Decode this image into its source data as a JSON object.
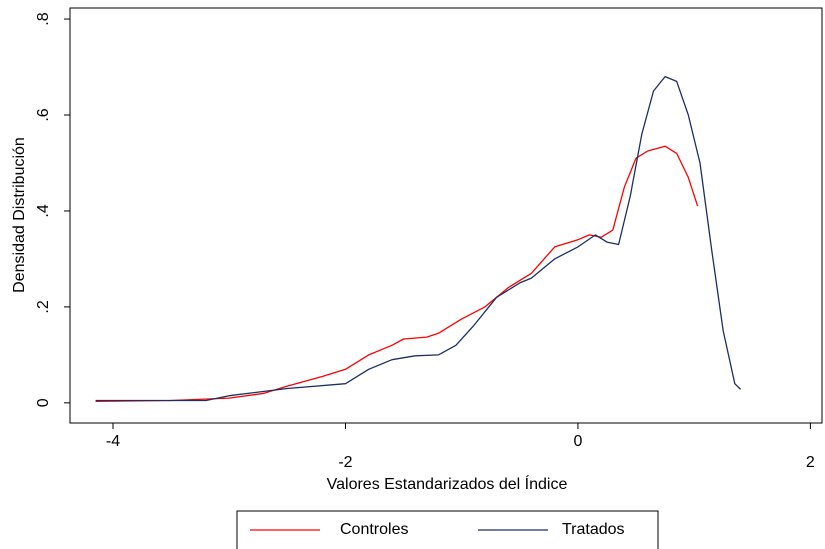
{
  "chart_data": {
    "type": "line",
    "x_label": "Valores Estandarizados del Índice",
    "y_label": "Densidad Distribución",
    "xlim": [
      -4.37,
      2.1
    ],
    "ylim": [
      -0.042,
      0.823
    ],
    "xticks": [
      -4,
      -2,
      0,
      2
    ],
    "yticks": [
      0,
      {
        "value": 0.2,
        "label": ".2"
      },
      {
        "value": 0.4,
        "label": ".4"
      },
      {
        "value": 0.6,
        "label": ".6"
      },
      {
        "value": 0.8,
        "label": ".8"
      }
    ],
    "grid": false,
    "legend": "bottom",
    "series": [
      {
        "name": "Controles",
        "color": "#ff0000",
        "x": [
          -4.15,
          -3.5,
          -3.0,
          -2.7,
          -2.5,
          -2.2,
          -2.0,
          -1.8,
          -1.6,
          -1.5,
          -1.3,
          -1.2,
          -1.0,
          -0.8,
          -0.6,
          -0.4,
          -0.2,
          0.0,
          0.1,
          0.2,
          0.3,
          0.4,
          0.5,
          0.6,
          0.75,
          0.85,
          0.95,
          1.03
        ],
        "values": [
          0.003,
          0.005,
          0.01,
          0.02,
          0.035,
          0.055,
          0.07,
          0.1,
          0.12,
          0.133,
          0.137,
          0.145,
          0.175,
          0.2,
          0.24,
          0.27,
          0.325,
          0.34,
          0.35,
          0.345,
          0.36,
          0.45,
          0.51,
          0.525,
          0.535,
          0.52,
          0.47,
          0.41
        ]
      },
      {
        "name": "Tratados",
        "color": "#1a2f66",
        "x": [
          -4.15,
          -3.5,
          -3.2,
          -3.0,
          -2.5,
          -2.0,
          -1.8,
          -1.6,
          -1.4,
          -1.2,
          -1.05,
          -0.9,
          -0.7,
          -0.5,
          -0.4,
          -0.2,
          0.0,
          0.15,
          0.25,
          0.35,
          0.45,
          0.55,
          0.65,
          0.75,
          0.85,
          0.95,
          1.05,
          1.15,
          1.25,
          1.35,
          1.4
        ],
        "values": [
          0.005,
          0.005,
          0.005,
          0.015,
          0.03,
          0.04,
          0.07,
          0.09,
          0.098,
          0.1,
          0.12,
          0.16,
          0.22,
          0.25,
          0.26,
          0.3,
          0.325,
          0.35,
          0.335,
          0.33,
          0.43,
          0.56,
          0.65,
          0.68,
          0.67,
          0.6,
          0.5,
          0.32,
          0.15,
          0.04,
          0.028
        ]
      }
    ]
  }
}
